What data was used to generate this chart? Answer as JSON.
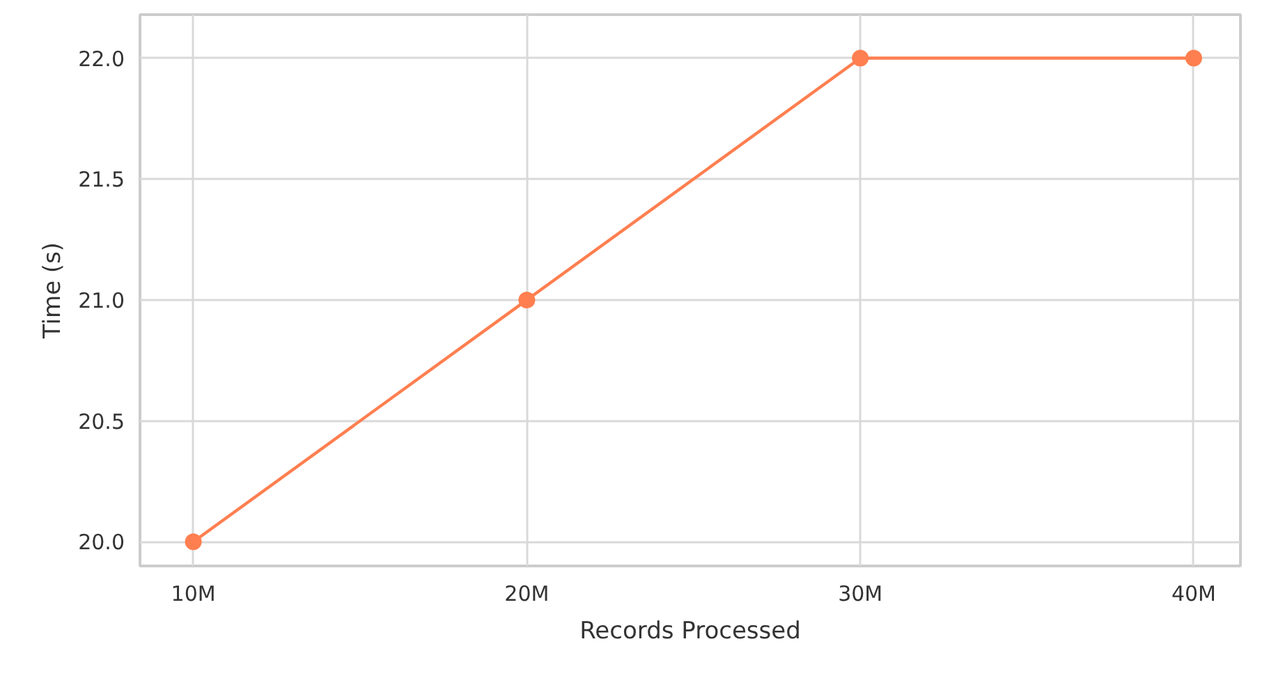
{
  "chart_data": {
    "type": "line",
    "xlabel": "Records Processed",
    "ylabel": "Time (s)",
    "categories": [
      "10M",
      "20M",
      "30M",
      "40M"
    ],
    "series": [
      {
        "color": "#ff7f50",
        "values": [
          20.0,
          21.0,
          22.0,
          22.0
        ]
      }
    ],
    "ylim": [
      19.9,
      22.18
    ],
    "yticks": [
      {
        "value": 20.0,
        "label": "20.0"
      },
      {
        "value": 20.5,
        "label": "20.5"
      },
      {
        "value": 21.0,
        "label": "21.0"
      },
      {
        "value": 21.5,
        "label": "21.5"
      },
      {
        "value": 22.0,
        "label": "22.0"
      }
    ],
    "grid": true,
    "marker": "circle",
    "line_style": "solid"
  }
}
